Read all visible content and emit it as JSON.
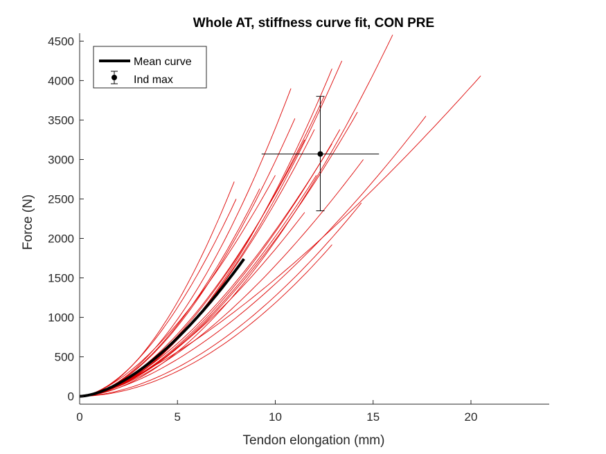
{
  "chart_data": {
    "type": "line",
    "title": "Whole AT, stiffness curve fit, CON PRE",
    "xlabel": "Tendon elongation (mm)",
    "ylabel": "Force (N)",
    "xlim": [
      0,
      24
    ],
    "ylim": [
      -100,
      4600
    ],
    "xticks": [
      0,
      5,
      10,
      15,
      20
    ],
    "yticks": [
      0,
      500,
      1000,
      1500,
      2000,
      2500,
      3000,
      3500,
      4000,
      4500
    ],
    "grid": false,
    "legend_position": "top-left",
    "legend": [
      {
        "label": "Mean curve",
        "marker": "thick-line",
        "color": "#000000"
      },
      {
        "label": "Ind max",
        "marker": "errorbar-point",
        "color": "#000000"
      }
    ],
    "individual_color": "#dd0000",
    "mean_color": "#000000",
    "individual_curves": [
      {
        "xmax": 10.8,
        "ymax": 3900,
        "exponent": 1.8
      },
      {
        "xmax": 7.9,
        "ymax": 2720,
        "exponent": 1.8
      },
      {
        "xmax": 8.0,
        "ymax": 2500,
        "exponent": 1.7
      },
      {
        "xmax": 11.0,
        "ymax": 3520,
        "exponent": 1.75
      },
      {
        "xmax": 12.5,
        "ymax": 3800,
        "exponent": 1.75
      },
      {
        "xmax": 12.9,
        "ymax": 4150,
        "exponent": 1.85
      },
      {
        "xmax": 13.4,
        "ymax": 4250,
        "exponent": 1.8
      },
      {
        "xmax": 16.0,
        "ymax": 4580,
        "exponent": 1.8
      },
      {
        "xmax": 12.0,
        "ymax": 3380,
        "exponent": 1.75
      },
      {
        "xmax": 11.5,
        "ymax": 3250,
        "exponent": 1.7
      },
      {
        "xmax": 14.2,
        "ymax": 3600,
        "exponent": 1.7
      },
      {
        "xmax": 13.3,
        "ymax": 3380,
        "exponent": 1.7
      },
      {
        "xmax": 12.9,
        "ymax": 3200,
        "exponent": 1.65
      },
      {
        "xmax": 14.5,
        "ymax": 3000,
        "exponent": 1.6
      },
      {
        "xmax": 12.1,
        "ymax": 2800,
        "exponent": 1.7
      },
      {
        "xmax": 20.5,
        "ymax": 4060,
        "exponent": 1.4
      },
      {
        "xmax": 17.7,
        "ymax": 3550,
        "exponent": 1.6
      },
      {
        "xmax": 14.4,
        "ymax": 2450,
        "exponent": 1.8
      },
      {
        "xmax": 12.9,
        "ymax": 1920,
        "exponent": 1.9
      },
      {
        "xmax": 11.5,
        "ymax": 2330,
        "exponent": 1.6
      },
      {
        "xmax": 10.0,
        "ymax": 2800,
        "exponent": 1.6
      },
      {
        "xmax": 9.2,
        "ymax": 2630,
        "exponent": 1.75
      }
    ],
    "mean_curve": {
      "xmax": 8.4,
      "ymax": 1740,
      "exponent": 1.65
    },
    "ind_max": {
      "x": 12.3,
      "y": 3070,
      "x_err_low": 9.3,
      "x_err_high": 15.3,
      "y_err_low": 2350,
      "y_err_high": 3800
    }
  }
}
